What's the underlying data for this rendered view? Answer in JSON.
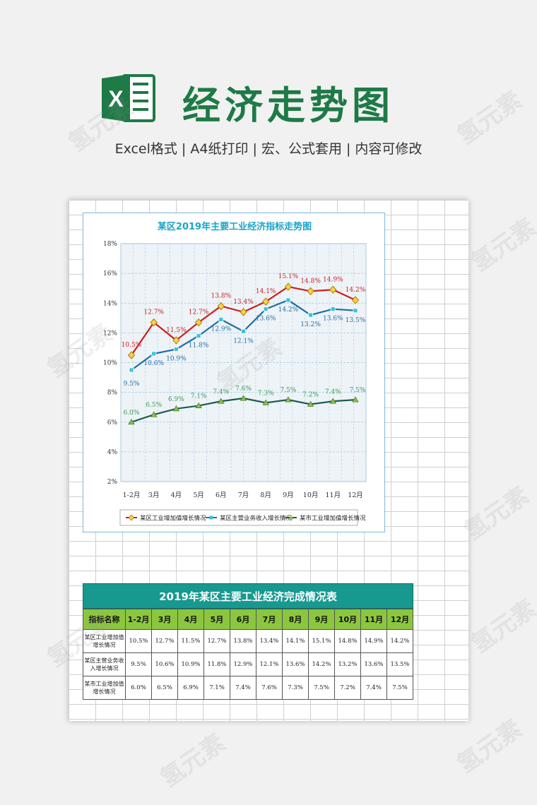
{
  "header": {
    "title": "经济走势图",
    "subtitle": "Excel格式 |  A4纸打印 | 宏、公式套用 | 内容可修改",
    "logo_letter": "X"
  },
  "colors": {
    "brand_green": "#1e7a46",
    "teal": "#17998f",
    "header_green": "#8cc63f",
    "series_red": "#cc1f1f",
    "series_blue": "#1f6fa6",
    "series_green": "#1a5e4e"
  },
  "chart_data": {
    "type": "line",
    "title": "某区2019年主要工业经济指标走势图",
    "categories": [
      "1-2月",
      "3月",
      "4月",
      "5月",
      "6月",
      "7月",
      "8月",
      "9月",
      "10月",
      "11月",
      "12月"
    ],
    "ylim": [
      2,
      18
    ],
    "yticks": [
      "2%",
      "4%",
      "6%",
      "8%",
      "10%",
      "12%",
      "14%",
      "16%",
      "18%"
    ],
    "grid": true,
    "legend_position": "bottom",
    "series": [
      {
        "name": "某区工业增加值增长情况",
        "color": "#cc1f1f",
        "marker": "diamond",
        "values": [
          10.5,
          12.7,
          11.5,
          12.7,
          13.8,
          13.4,
          14.1,
          15.1,
          14.8,
          14.9,
          14.2
        ],
        "labels": [
          "10.5%",
          "12.7%",
          "11.5%",
          "12.7%",
          "13.8%",
          "13.4%",
          "14.1%",
          "15.1%",
          "14.8%",
          "14.9%",
          "14.2%"
        ]
      },
      {
        "name": "某区主营业务收入增长情况",
        "color": "#1f6fa6",
        "marker": "square",
        "values": [
          9.5,
          10.6,
          10.9,
          11.8,
          12.9,
          12.1,
          13.6,
          14.2,
          13.2,
          13.6,
          13.5
        ],
        "labels": [
          "9.5%",
          "10.6%",
          "10.9%",
          "11.8%",
          "12.9%",
          "12.1%",
          "13.6%",
          "14.2%",
          "13.2%",
          "13.6%",
          "13.5%"
        ]
      },
      {
        "name": "某市工业增加值增长情况",
        "color": "#1a5e4e",
        "marker": "triangle",
        "values": [
          6.0,
          6.5,
          6.9,
          7.1,
          7.4,
          7.6,
          7.3,
          7.5,
          7.2,
          7.4,
          7.5
        ],
        "labels": [
          "6.0%",
          "6.5%",
          "6.9%",
          "7.1%",
          "7.4%",
          "7.6%",
          "7.3%",
          "7.5%",
          "7.2%",
          "7.4%",
          "7.5%"
        ]
      }
    ]
  },
  "table": {
    "title": "2019年某区主要工业经济完成情况表",
    "header_label": "指标名称",
    "columns": [
      "1-2月",
      "3月",
      "4月",
      "5月",
      "6月",
      "7月",
      "8月",
      "9月",
      "10月",
      "11月",
      "12月"
    ],
    "rows": [
      {
        "name": "某区工业增加值增长情况",
        "cells": [
          "10.5%",
          "12.7%",
          "11.5%",
          "12.7%",
          "13.8%",
          "13.4%",
          "14.1%",
          "15.1%",
          "14.8%",
          "14.9%",
          "14.2%"
        ]
      },
      {
        "name": "某区主营业务收入增长情况",
        "cells": [
          "9.5%",
          "10.6%",
          "10.9%",
          "11.8%",
          "12.9%",
          "12.1%",
          "13.6%",
          "14.2%",
          "13.2%",
          "13.6%",
          "13.5%"
        ]
      },
      {
        "name": "某市工业增加值增长情况",
        "cells": [
          "6.0%",
          "6.5%",
          "6.9%",
          "7.1%",
          "7.4%",
          "7.6%",
          "7.3%",
          "7.5%",
          "7.2%",
          "7.4%",
          "7.5%"
        ]
      }
    ]
  },
  "watermark": "氢元素"
}
